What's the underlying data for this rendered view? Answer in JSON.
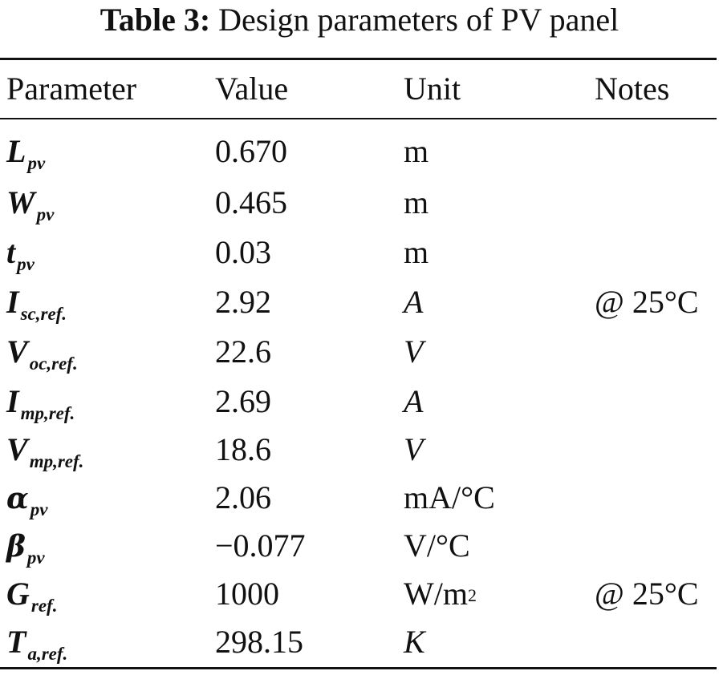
{
  "caption": {
    "label": "Table 3:",
    "text": "Design parameters of PV panel"
  },
  "headers": {
    "parameter": "Parameter",
    "value": "Value",
    "unit": "Unit",
    "notes": "Notes"
  },
  "rows": [
    {
      "symbol": "L",
      "subscript": "pv",
      "value": "0.670",
      "unit": "m",
      "unit_sup": "",
      "notes": ""
    },
    {
      "symbol": "W",
      "subscript": "pv",
      "value": "0.465",
      "unit": "m",
      "unit_sup": "",
      "notes": ""
    },
    {
      "symbol": "t",
      "subscript": "pv",
      "value": "0.03",
      "unit": "m",
      "unit_sup": "",
      "notes": ""
    },
    {
      "symbol": "I",
      "subscript": "sc,ref.",
      "value": "2.92",
      "unit": "A",
      "unit_sup": "",
      "notes": "@ 25°C"
    },
    {
      "symbol": "V",
      "subscript": "oc,ref.",
      "value": "22.6",
      "unit": "V",
      "unit_sup": "",
      "notes": ""
    },
    {
      "symbol": "I",
      "subscript": "mp,ref.",
      "value": "2.69",
      "unit": "A",
      "unit_sup": "",
      "notes": ""
    },
    {
      "symbol": "V",
      "subscript": "mp,ref.",
      "value": "18.6",
      "unit": "V",
      "unit_sup": "",
      "notes": ""
    },
    {
      "symbol": "α",
      "subscript": "pv",
      "value": "2.06",
      "unit": "mA/°C",
      "unit_sup": "",
      "notes": ""
    },
    {
      "symbol": "β",
      "subscript": "pv",
      "value": "−0.077",
      "unit": "V/°C",
      "unit_sup": "",
      "notes": ""
    },
    {
      "symbol": "G",
      "subscript": "ref.",
      "value": "1000",
      "unit": "W/m",
      "unit_sup": "2",
      "notes": "@ 25°C"
    },
    {
      "symbol": "T",
      "subscript": "a,ref.",
      "value": "298.15",
      "unit": "K",
      "unit_sup": "",
      "notes": ""
    }
  ]
}
